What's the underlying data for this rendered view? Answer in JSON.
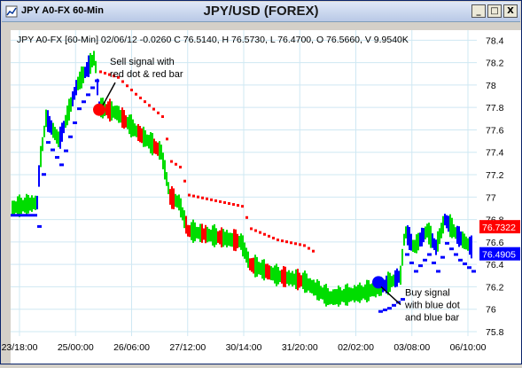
{
  "window": {
    "title": "JPY A0-FX 60-Min",
    "buttons": {
      "minimize": "_",
      "maximize": "□",
      "close": "X"
    }
  },
  "chart_title": "JPY/USD (FOREX)",
  "info_line": "JPY A0-FX [60-Min] 02/06/12  -0.0260 C 76.5140, H 76.5730, L 76.4700, O 76.5660, V 9.9540K",
  "annotations": {
    "sell_lines": [
      "Sell signal with",
      "red dot & red bar"
    ],
    "buy_lines": [
      "Buy signal",
      "with blue dot",
      "and blue bar"
    ]
  },
  "price_tags": {
    "upper": "76.7322",
    "lower": "76.4905"
  },
  "colors": {
    "up_bar": "#00dd00",
    "down_bar": "#ff0000",
    "buy": "#0000ff",
    "sell": "#ff0000",
    "grid": "#cfe8f3"
  },
  "chart_data": {
    "type": "ohlc",
    "y_ticks": [
      "75.8",
      "76",
      "76.2",
      "76.4",
      "76.6",
      "76.8",
      "77",
      "77.2",
      "77.4",
      "77.6",
      "77.8",
      "78",
      "78.2",
      "78.4"
    ],
    "x_ticks": [
      "23/18:00",
      "25/00:00",
      "26/06:00",
      "27/12:00",
      "30/14:00",
      "31/20:00",
      "02/02:00",
      "03/08:00",
      "06/10:00"
    ],
    "ylim": [
      75.8,
      78.45
    ],
    "price_path": [
      [
        0,
        76.9
      ],
      [
        30,
        76.95
      ],
      [
        33,
        77.3
      ],
      [
        40,
        77.7
      ],
      [
        55,
        77.5
      ],
      [
        75,
        78.0
      ],
      [
        95,
        78.25
      ],
      [
        100,
        77.8
      ],
      [
        120,
        77.75
      ],
      [
        140,
        77.6
      ],
      [
        170,
        77.4
      ],
      [
        180,
        77.0
      ],
      [
        190,
        76.95
      ],
      [
        200,
        76.7
      ],
      [
        230,
        76.65
      ],
      [
        260,
        76.6
      ],
      [
        270,
        76.4
      ],
      [
        300,
        76.3
      ],
      [
        330,
        76.25
      ],
      [
        360,
        76.1
      ],
      [
        400,
        76.15
      ],
      [
        425,
        76.22
      ],
      [
        440,
        76.3
      ],
      [
        445,
        76.7
      ],
      [
        455,
        76.55
      ],
      [
        470,
        76.7
      ],
      [
        480,
        76.55
      ],
      [
        490,
        76.8
      ],
      [
        505,
        76.65
      ],
      [
        520,
        76.55
      ]
    ],
    "sell_segments": [
      [
        100,
        340
      ]
    ],
    "buy_segments": [
      [
        30,
        100
      ],
      [
        415,
        520
      ]
    ],
    "sell_dot": {
      "x": 100,
      "y": 77.78
    },
    "buy_dot": {
      "x": 415,
      "y": 76.24
    }
  }
}
